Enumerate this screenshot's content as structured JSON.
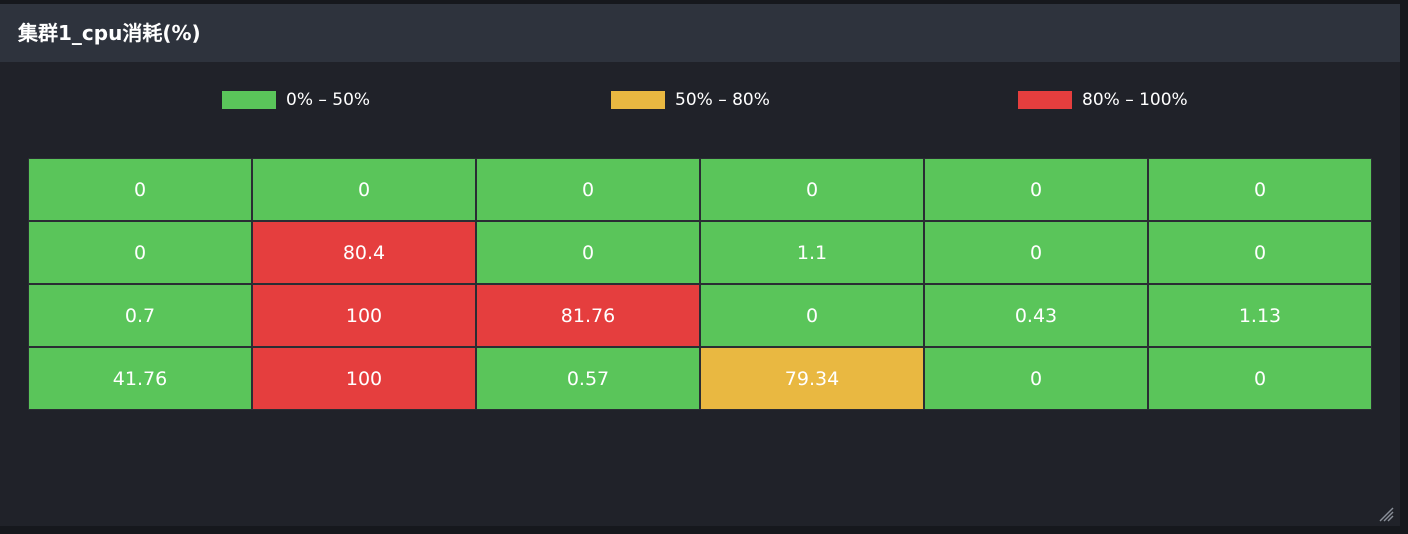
{
  "panel": {
    "title": "集群1_cpu消耗(%)"
  },
  "colors": {
    "green": "#5ac55a",
    "yellow": "#e9b841",
    "red": "#e53e3e"
  },
  "icons": {
    "resize_handle": "resize-handle-icon"
  },
  "chart_data": {
    "type": "heatmap",
    "title": "集群1_cpu消耗(%)",
    "legend": [
      {
        "label": "0% – 50%",
        "min": 0,
        "max": 50,
        "color": "#5ac55a"
      },
      {
        "label": "50% – 80%",
        "min": 50,
        "max": 80,
        "color": "#e9b841"
      },
      {
        "label": "80% – 100%",
        "min": 80,
        "max": 100,
        "color": "#e53e3e"
      }
    ],
    "legend_position": "top",
    "rows": [
      [
        "0",
        "0",
        "0",
        "0",
        "0",
        "0"
      ],
      [
        "0",
        "80.4",
        "0",
        "1.1",
        "0",
        "0"
      ],
      [
        "0.7",
        "100",
        "81.76",
        "0",
        "0.43",
        "1.13"
      ],
      [
        "41.76",
        "100",
        "0.57",
        "79.34",
        "0",
        "0"
      ]
    ]
  }
}
